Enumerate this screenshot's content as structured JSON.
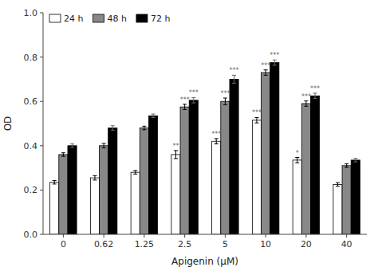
{
  "chart_data": {
    "type": "bar",
    "categories": [
      "0",
      "0.62",
      "1.25",
      "2.5",
      "5",
      "10",
      "20",
      "40"
    ],
    "series": [
      {
        "name": "24 h",
        "color": "white",
        "values": [
          0.235,
          0.255,
          0.28,
          0.36,
          0.42,
          0.515,
          0.335,
          0.225
        ],
        "errors": [
          0.008,
          0.01,
          0.008,
          0.018,
          0.012,
          0.012,
          0.012,
          0.008
        ],
        "annotations": [
          null,
          null,
          null,
          "**",
          "***",
          "***",
          "*",
          null
        ]
      },
      {
        "name": "48 h",
        "color": "#888888",
        "values": [
          0.36,
          0.4,
          0.48,
          0.575,
          0.6,
          0.73,
          0.59,
          0.31
        ],
        "errors": [
          0.008,
          0.01,
          0.008,
          0.012,
          0.015,
          0.012,
          0.012,
          0.008
        ],
        "annotations": [
          null,
          null,
          null,
          "***",
          "***",
          "***",
          "***",
          null
        ]
      },
      {
        "name": "72 h",
        "color": "black",
        "values": [
          0.4,
          0.48,
          0.535,
          0.605,
          0.7,
          0.775,
          0.625,
          0.335
        ],
        "errors": [
          0.008,
          0.01,
          0.008,
          0.012,
          0.018,
          0.012,
          0.012,
          0.008
        ],
        "annotations": [
          null,
          null,
          null,
          "***",
          "***",
          "***",
          "***",
          null
        ]
      }
    ],
    "xlabel": "Apigenin (μM)",
    "ylabel": "OD",
    "ylim": [
      0.0,
      1.0
    ],
    "yticks": [
      {
        "value": 0.0,
        "label": "0.0"
      },
      0.2,
      0.4,
      0.6,
      0.8,
      {
        "value": 1.0,
        "label": "1.0"
      }
    ],
    "grid": false,
    "legend": "upper left"
  }
}
